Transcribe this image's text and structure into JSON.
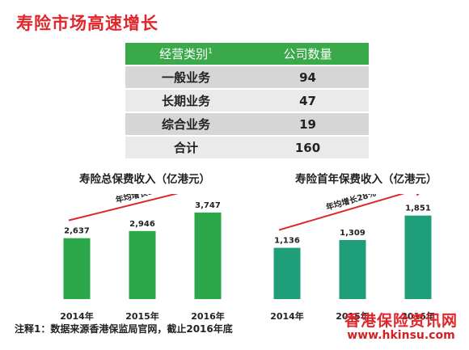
{
  "title": "寿险市场高速增长",
  "table": {
    "headers": [
      "经营类别",
      "公司数量"
    ],
    "header_footnote_mark": "1",
    "rows": [
      {
        "label": "一般业务",
        "value": "94"
      },
      {
        "label": "长期业务",
        "value": "47"
      },
      {
        "label": "综合业务",
        "value": "19"
      },
      {
        "label": "合计",
        "value": "160"
      }
    ]
  },
  "chart_data": [
    {
      "type": "bar",
      "title": "寿险总保费收入（亿港元）",
      "categories": [
        "2014年",
        "2015年",
        "2016年"
      ],
      "values": [
        2637,
        2946,
        3747
      ],
      "value_labels": [
        "2,637",
        "2,946",
        "3,747"
      ],
      "annotation": "年均增长19%",
      "bar_color": "#2aa84a",
      "ylim": [
        0,
        4200
      ]
    },
    {
      "type": "bar",
      "title": "寿险首年保费收入（亿港元）",
      "categories": [
        "2014年",
        "2015年",
        "2016年"
      ],
      "values": [
        1136,
        1309,
        1851
      ],
      "value_labels": [
        "1,136",
        "1,309",
        "1,851"
      ],
      "annotation": "年均增长28%",
      "bar_color": "#1f9e7a",
      "ylim": [
        0,
        2150
      ]
    }
  ],
  "footnote": "注释1：数据来源香港保监局官网，截止2016年底",
  "watermark": {
    "name": "香港保险资讯网",
    "url": "www.hkinsu.com"
  },
  "colors": {
    "title": "#e0262b",
    "table_header": "#3aa94a",
    "arrow": "#e0262b"
  }
}
